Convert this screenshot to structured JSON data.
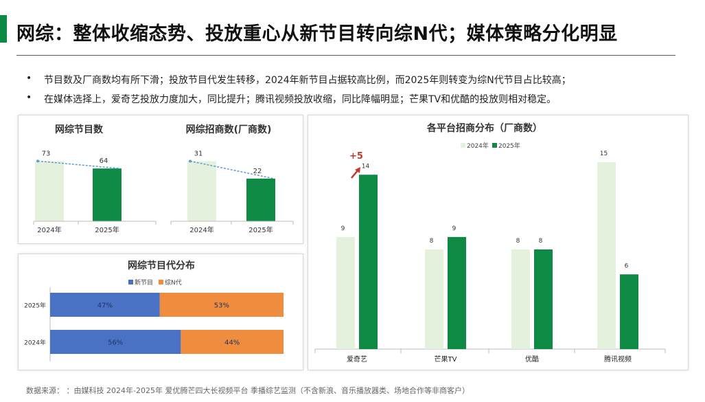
{
  "header": {
    "title": "网综：整体收缩态势、投放重心从新节目转向综N代；媒体策略分化明显",
    "accent_color": "#0b8a44"
  },
  "bullets": [
    "节目数及厂商数均有所下滑；投放节目代发生转移，2024年新节目占据较高比例，而2025年则转变为综N代节目占比较高；",
    "在媒体选择上，爱奇艺投放力度加大，同比提升；腾讯视频投放收缩，同比降幅明显；芒果TV和优酷的投放则相对稳定。"
  ],
  "bullet_symbol": "•",
  "footer": "数据来源：  ：由媒科技 2024年-2025年 爱优腾芒四大长视频平台 季播综艺监测（不含新浪、音乐播放器类、场地合作等非商客户）",
  "colors": {
    "y2024": "#e4f1dc",
    "y2025": "#0f8a45",
    "trend": "#5b9bd5",
    "new_show": "#4a72c4",
    "sequel": "#ef8c3d",
    "highlight": "#c0392b"
  },
  "chart_data": [
    {
      "type": "bar",
      "title": "网综节目数",
      "categories": [
        "2024年",
        "2025年"
      ],
      "values": [
        73,
        64
      ],
      "ylim": [
        0,
        80
      ],
      "trend_line": true
    },
    {
      "type": "bar",
      "title": "网综招商数(厂商数)",
      "categories": [
        "2024年",
        "2025年"
      ],
      "values": [
        31,
        22
      ],
      "ylim": [
        0,
        34
      ],
      "trend_line": true
    },
    {
      "type": "bar",
      "title": "网综节目代分布",
      "orientation": "horizontal",
      "stacked": true,
      "categories": [
        "2025年",
        "2024年"
      ],
      "series": [
        {
          "name": "新节目",
          "values": [
            47,
            56
          ],
          "labels": [
            "47%",
            "56%"
          ]
        },
        {
          "name": "综N代",
          "values": [
            53,
            44
          ],
          "labels": [
            "53%",
            "44%"
          ]
        }
      ],
      "legend": "top"
    },
    {
      "type": "bar",
      "title": "各平台招商分布（厂商数）",
      "categories": [
        "爱奇艺",
        "芒果TV",
        "优酷",
        "腾讯视频"
      ],
      "series": [
        {
          "name": "2024年",
          "values": [
            9,
            8,
            8,
            15
          ]
        },
        {
          "name": "2025年",
          "values": [
            14,
            9,
            8,
            6
          ]
        }
      ],
      "annotation": "+5",
      "ylim": [
        0,
        16
      ],
      "legend": "top"
    }
  ]
}
